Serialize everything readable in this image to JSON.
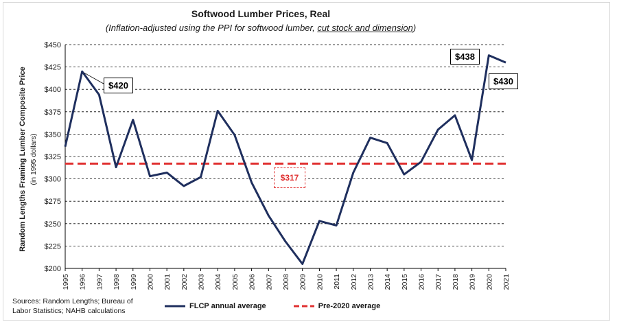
{
  "chart_data": {
    "type": "line",
    "title": "Softwood Lumber Prices, Real",
    "subtitle_pre": "(Inflation-adjusted using the PPI for softwood lumber, ",
    "subtitle_link": "cut stock and dimension",
    "subtitle_post": ")",
    "ylabel": "Random Lengths Framing Lumber Composite Price",
    "ylabel2": "(in 1995 dollars)",
    "ylim": [
      200,
      450
    ],
    "yticks": [
      200,
      225,
      250,
      275,
      300,
      325,
      350,
      375,
      400,
      425,
      450
    ],
    "ytick_labels": [
      "$200",
      "$225",
      "$250",
      "$275",
      "$300",
      "$325",
      "$350",
      "$375",
      "$400",
      "$425",
      "$450"
    ],
    "x": [
      "1995",
      "1996",
      "1997",
      "1998",
      "1999",
      "2000",
      "2001",
      "2002",
      "2003",
      "2004",
      "2005",
      "2006",
      "2007",
      "2008",
      "2009",
      "2010",
      "2011",
      "2012",
      "2013",
      "2014",
      "2015",
      "2016",
      "2017",
      "2018",
      "2019",
      "2020",
      "2021"
    ],
    "series": [
      {
        "name": "FLCP annual average",
        "color": "#1f2f5e",
        "values": [
          336,
          420,
          394,
          313,
          366,
          303,
          307,
          292,
          302,
          376,
          349,
          296,
          259,
          230,
          205,
          253,
          248,
          307,
          346,
          340,
          305,
          319,
          355,
          371,
          321,
          438,
          430
        ]
      },
      {
        "name": "Pre-2020 average",
        "color": "#e03131",
        "value": 317
      }
    ],
    "annotations": [
      {
        "text": "$420",
        "year": "1996"
      },
      {
        "text": "$438",
        "year": "2020"
      },
      {
        "text": "$430",
        "year": "2021"
      },
      {
        "text": "$317",
        "year": "2009"
      }
    ],
    "grid": "horizontal dashed",
    "legend_position": "bottom"
  },
  "sources": "Sources: Random Lengths; Bureau of Labor Statistics; NAHB calculations"
}
